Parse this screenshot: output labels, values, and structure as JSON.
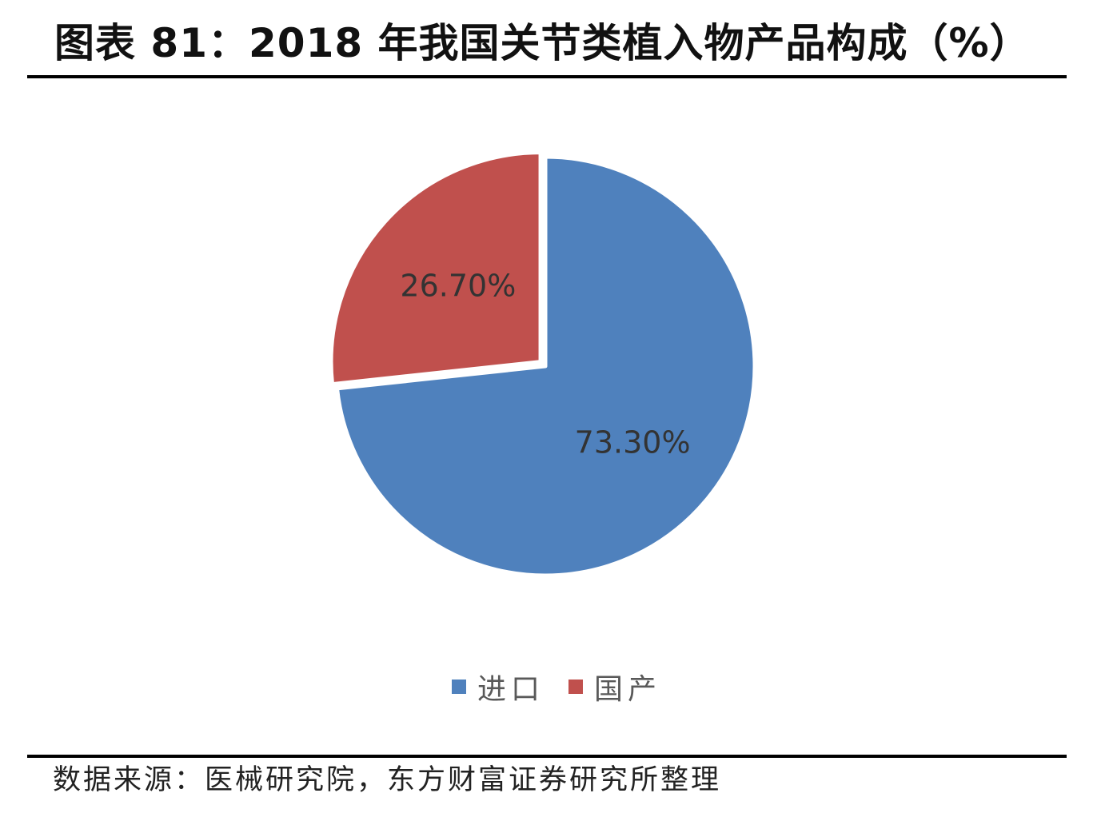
{
  "title": "图表 81：2018 年我国关节类植入物产品构成（%）",
  "source": "数据来源：医械研究院，东方财富证券研究所整理",
  "chart_data": {
    "type": "pie",
    "categories": [
      "进口",
      "国产"
    ],
    "values": [
      73.3,
      26.7
    ],
    "labels": [
      "73.30%",
      "26.70%"
    ],
    "colors": [
      "#4F81BD",
      "#C0504D"
    ],
    "legend_position": "bottom"
  }
}
